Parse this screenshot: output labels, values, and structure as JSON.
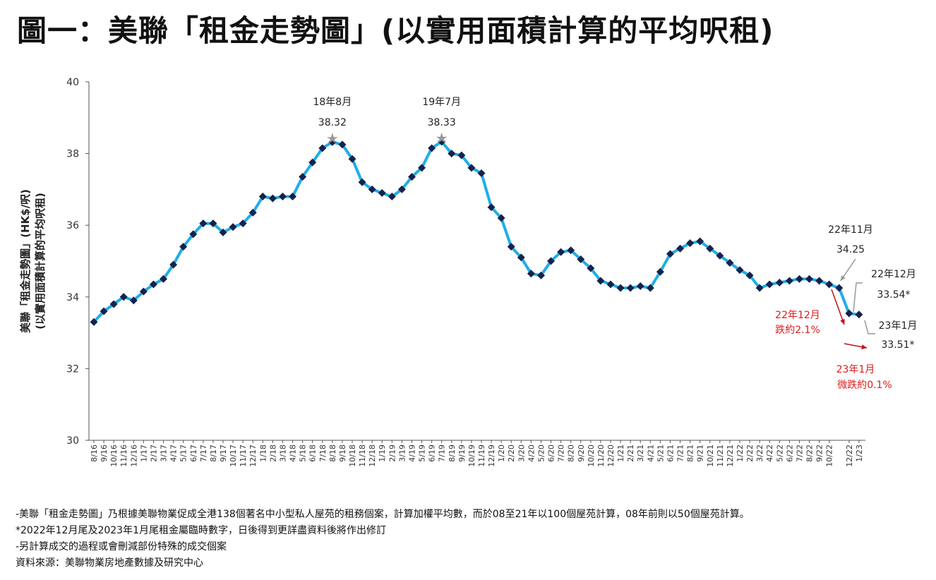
{
  "title": "圖一：美聯「租金走勢圖」(以實用面積計算的平均呎租)",
  "chart_data": {
    "type": "line",
    "title": "",
    "ylabel_line1": "美聯「租金走勢圖」(HK$/呎)",
    "ylabel_line2": "(以實用面積計算的平均呎租)",
    "ylim": [
      30,
      40
    ],
    "yticks": [
      30,
      32,
      34,
      36,
      38,
      40
    ],
    "grid": false,
    "categories": [
      "8/16",
      "9/16",
      "10/16",
      "11/16",
      "12/16",
      "1/17",
      "2/17",
      "3/17",
      "4/17",
      "5/17",
      "6/17",
      "7/17",
      "8/17",
      "9/17",
      "10/17",
      "11/17",
      "12/17",
      "1/18",
      "2/18",
      "3/18",
      "4/18",
      "5/18",
      "6/18",
      "7/18",
      "8/18",
      "9/18",
      "10/18",
      "11/18",
      "12/18",
      "1/19",
      "2/19",
      "3/19",
      "4/19",
      "5/19",
      "6/19",
      "7/19",
      "8/19",
      "9/19",
      "10/19",
      "11/19",
      "12/19",
      "1/20",
      "2/20",
      "3/20",
      "4/20",
      "5/20",
      "6/20",
      "7/20",
      "8/20",
      "9/20",
      "10/20",
      "11/20",
      "12/20",
      "1/21",
      "2/21",
      "3/21",
      "4/21",
      "5/21",
      "6/21",
      "7/21",
      "8/21",
      "9/21",
      "10/21",
      "11/21",
      "12/21",
      "1/22",
      "2/22",
      "3/22",
      "4/22",
      "5/22",
      "6/22",
      "7/22",
      "8/22",
      "9/22",
      "10/22",
      "11/22",
      "12/22",
      "1/23"
    ],
    "x_tick_labels": [
      "8/16",
      "9/16",
      "10/16",
      "11/16",
      "12/16",
      "1/17",
      "2/17",
      "3/17",
      "4/17",
      "5/17",
      "6/17",
      "7/17",
      "8/17",
      "9/17",
      "10/17",
      "11/17",
      "12/17",
      "1/18",
      "2/18",
      "3/18",
      "4/18",
      "5/18",
      "6/18",
      "7/18",
      "8/18",
      "9/18",
      "10/18",
      "11/18",
      "12/18",
      "1/19",
      "2/19",
      "3/19",
      "4/19",
      "5/19",
      "6/19",
      "7/19",
      "8/19",
      "9/19",
      "10/19",
      "11/19",
      "12/19",
      "1/20",
      "2/20",
      "3/20",
      "4/20",
      "5/20",
      "6/20",
      "7/20",
      "8/20",
      "9/20",
      "10/20",
      "11/20",
      "12/20",
      "1/21",
      "2/21",
      "3/21",
      "4/21",
      "5/21",
      "6/21",
      "7/21",
      "8/21",
      "9/21",
      "10/21",
      "11/21",
      "12/21",
      "1/22",
      "2/22",
      "3/22",
      "4/22",
      "5/22",
      "6/22",
      "7/22",
      "8/22",
      "9/22",
      "10/22",
      "12/22",
      "1/23"
    ],
    "values": [
      33.3,
      33.6,
      33.8,
      34.0,
      33.9,
      34.15,
      34.35,
      34.5,
      34.9,
      35.4,
      35.75,
      36.05,
      36.05,
      35.8,
      35.95,
      36.05,
      36.35,
      36.8,
      36.75,
      36.8,
      36.8,
      37.35,
      37.75,
      38.15,
      38.32,
      38.25,
      37.85,
      37.2,
      37.0,
      36.9,
      36.8,
      37.0,
      37.35,
      37.6,
      38.15,
      38.33,
      38.0,
      37.95,
      37.6,
      37.45,
      36.5,
      36.2,
      35.4,
      35.1,
      34.65,
      34.6,
      35.0,
      35.25,
      35.3,
      35.05,
      34.8,
      34.45,
      34.35,
      34.25,
      34.25,
      34.3,
      34.25,
      34.7,
      35.2,
      35.35,
      35.5,
      35.55,
      35.35,
      35.15,
      34.95,
      34.75,
      34.6,
      34.25,
      34.35,
      34.4,
      34.45,
      34.5,
      34.5,
      34.45,
      34.35,
      34.25,
      33.54,
      33.51
    ],
    "series_color": "#1eaee9",
    "marker_color": "#14234b",
    "annotations": [
      {
        "label": "18年8月",
        "value": "38.32",
        "color": "#222222"
      },
      {
        "label": "19年7月",
        "value": "38.33",
        "color": "#222222"
      },
      {
        "label": "22年11月",
        "value": "34.25",
        "color": "#222222"
      },
      {
        "label": "22年12月",
        "value": "33.54*",
        "color": "#222222"
      },
      {
        "label": "23年1月",
        "value": "33.51*",
        "color": "#222222"
      },
      {
        "label": "22年12月",
        "value": "跌約2.1%",
        "color": "#e01a1a"
      },
      {
        "label": "23年1月",
        "value": "微跌約0.1%",
        "color": "#e01a1a"
      }
    ]
  },
  "notes": [
    "-美聯「租金走勢圖」乃根據美聯物業促成全港138個著名中小型私人屋苑的租務個案，計算加權平均數，而於08至21年以100個屋苑計算，08年前則以50個屋苑計算。",
    "*2022年12月尾及2023年1月尾租金屬臨時數字，日後得到更詳盡資料後將作出修訂",
    "-另計算成交的過程或會刪減部份特殊的成交個案",
    "資料來源：美聯物業房地產數據及研究中心"
  ]
}
